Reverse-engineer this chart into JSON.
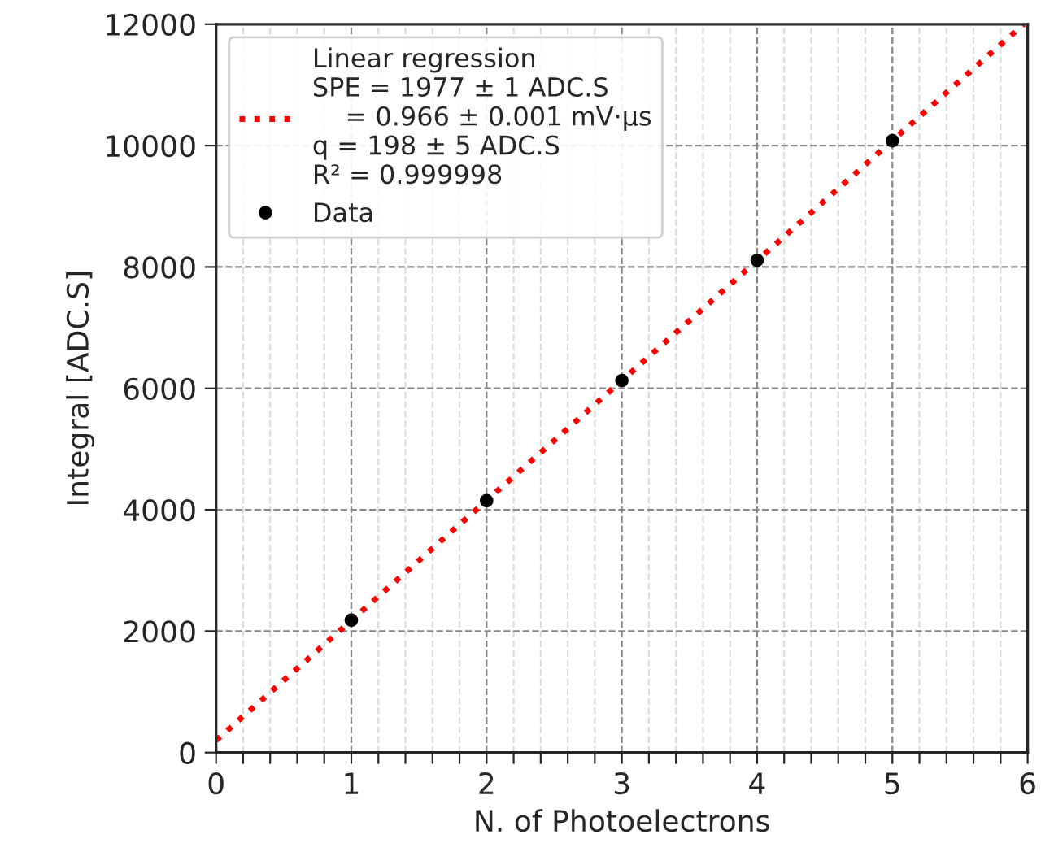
{
  "chart_data": {
    "type": "scatter",
    "xlabel": "N. of Photoelectrons",
    "ylabel": "Integral [ADC.S]",
    "series": [
      {
        "name": "Linear regression\nSPE = 1977 ± 1 ADC.S\n    = 0.966 ± 0.001 mV·μs\nq = 198 ± 5 ADC.S\nR² = 0.999998",
        "type": "line",
        "color": "#ff0000",
        "line_style": "dotted",
        "marker": "none",
        "x": [
          0,
          5.97
        ],
        "values": [
          200,
          12000
        ]
      },
      {
        "name": "Data",
        "color": "#000000",
        "marker": "circle",
        "x": [
          1,
          2,
          3,
          4,
          5
        ],
        "values": [
          2180,
          4150,
          6130,
          8110,
          10080
        ]
      }
    ],
    "xlim": [
      0,
      6
    ],
    "ylim": [
      0,
      12000
    ],
    "xticks": [
      0,
      {
        "value": 0.2,
        "label": null
      },
      {
        "value": 0.4,
        "label": null
      },
      {
        "value": 0.6,
        "label": null
      },
      {
        "value": 0.8,
        "label": null
      },
      1,
      {
        "value": 1.2,
        "label": null
      },
      {
        "value": 1.4,
        "label": null
      },
      {
        "value": 1.6,
        "label": null
      },
      {
        "value": 1.8,
        "label": null
      },
      2,
      {
        "value": 2.2,
        "label": null
      },
      {
        "value": 2.4,
        "label": null
      },
      {
        "value": 2.6,
        "label": null
      },
      {
        "value": 2.8,
        "label": null
      },
      3,
      {
        "value": 3.2,
        "label": null
      },
      {
        "value": 3.4,
        "label": null
      },
      {
        "value": 3.6,
        "label": null
      },
      {
        "value": 3.8,
        "label": null
      },
      4,
      {
        "value": 4.2,
        "label": null
      },
      {
        "value": 4.4,
        "label": null
      },
      {
        "value": 4.6,
        "label": null
      },
      {
        "value": 4.8,
        "label": null
      },
      5,
      {
        "value": 5.2,
        "label": null
      },
      {
        "value": 5.4,
        "label": null
      },
      {
        "value": 5.6,
        "label": null
      },
      {
        "value": 5.8,
        "label": null
      },
      6
    ],
    "yticks": [
      0,
      2000,
      4000,
      6000,
      8000,
      10000,
      12000
    ],
    "grid": true,
    "legend": "top left"
  }
}
